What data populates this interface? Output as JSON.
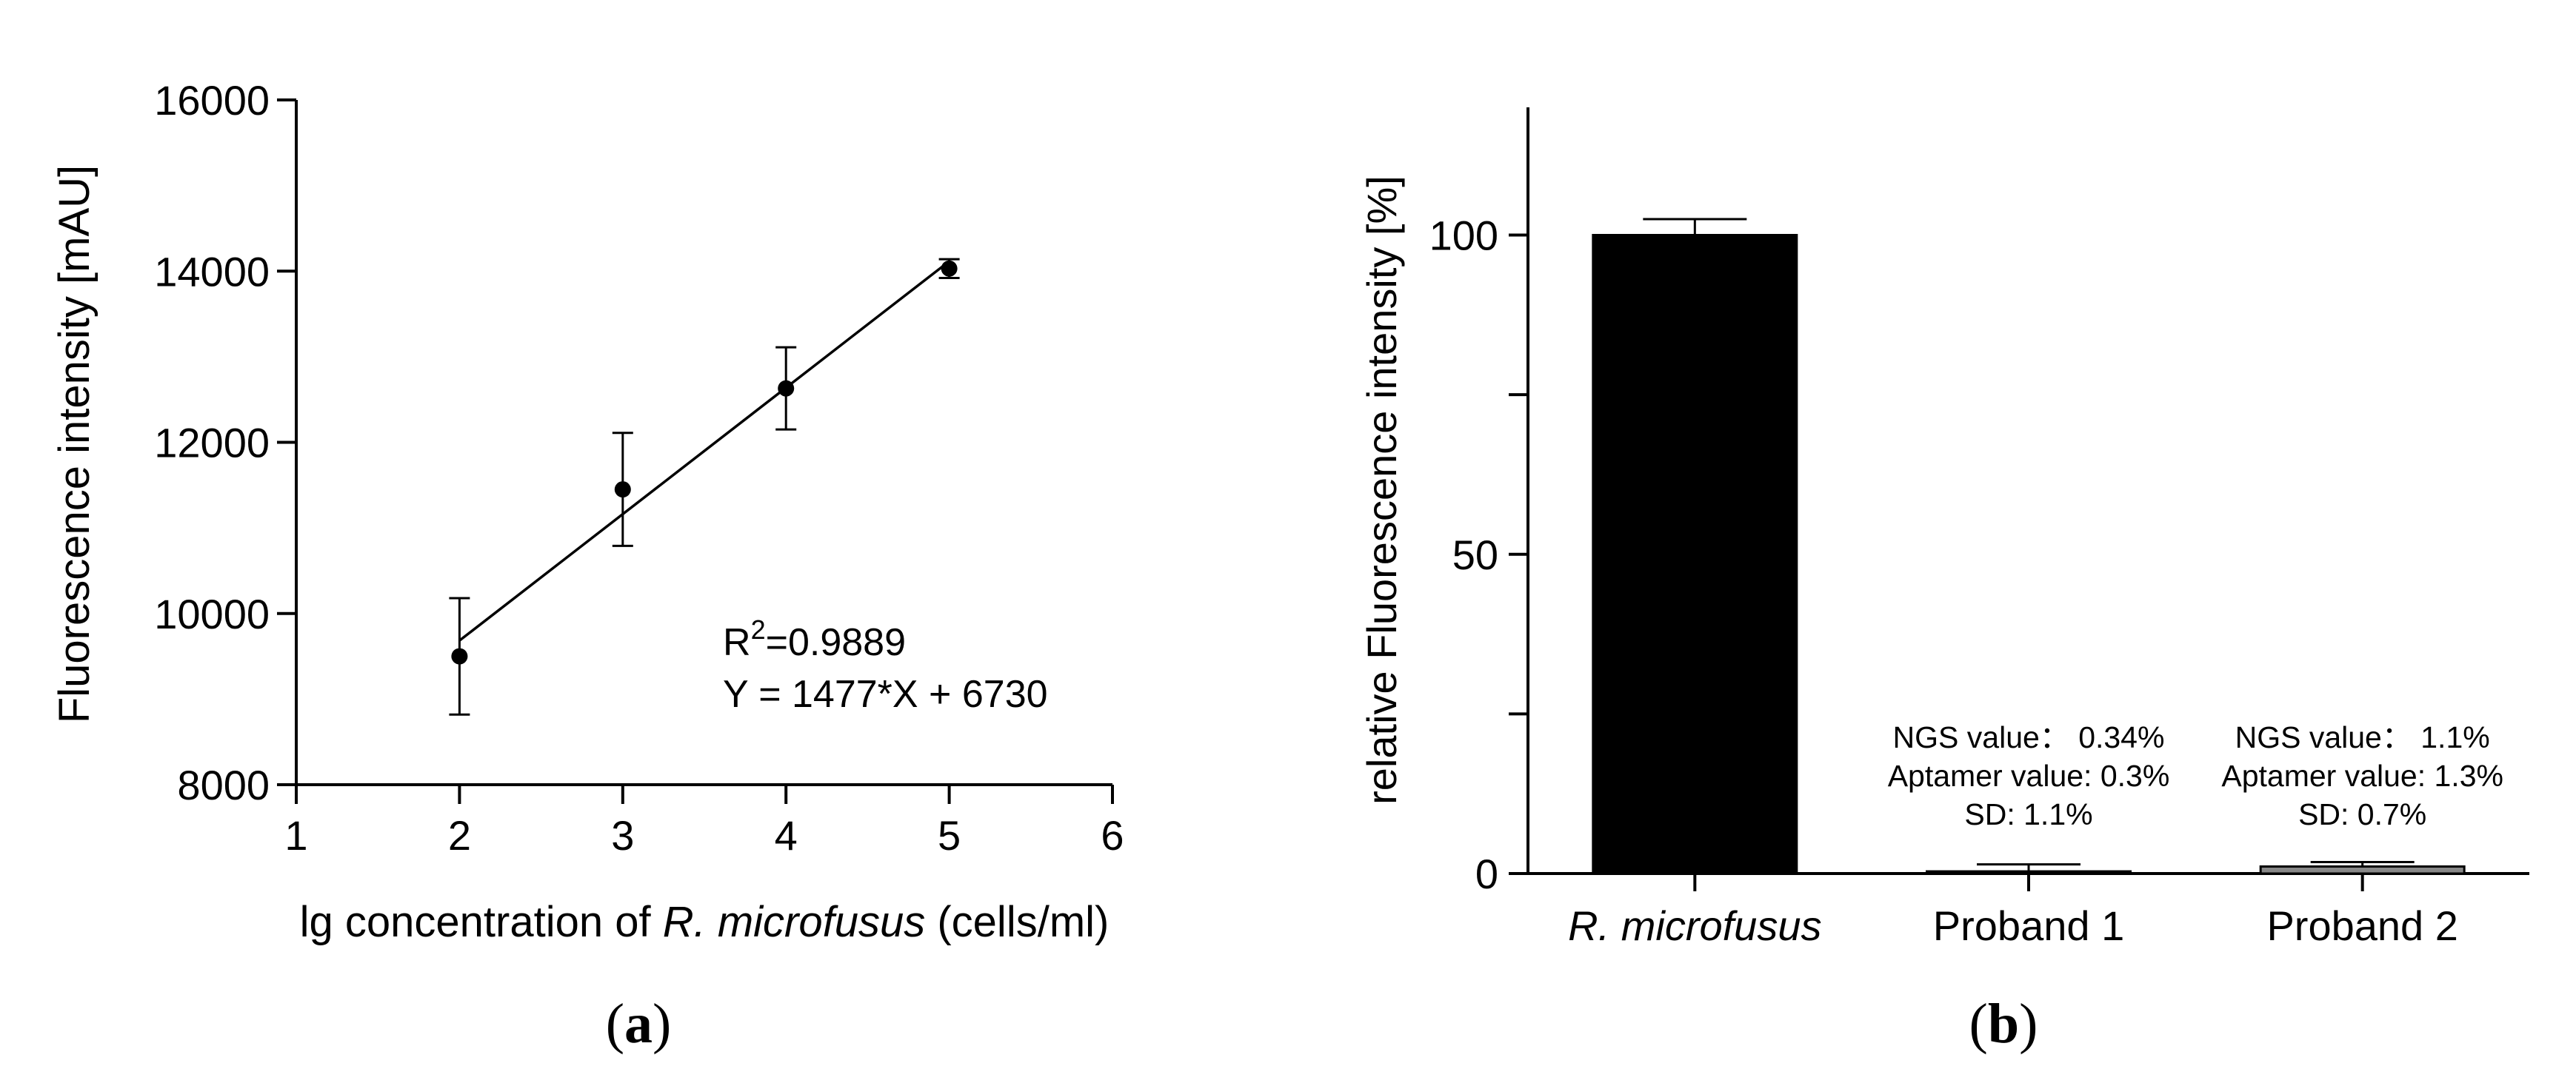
{
  "chart_data": [
    {
      "type": "scatter",
      "panel_label": "a",
      "xlabel_pre": "lg concentration of ",
      "xlabel_species": "R. microfusus",
      "xlabel_post": " (cells/ml)",
      "ylabel": "Fluorescence intensity [mAU]",
      "xlim": [
        1,
        6
      ],
      "ylim": [
        8000,
        16000
      ],
      "x_ticks": [
        "1",
        "2",
        "3",
        "4",
        "5",
        "6"
      ],
      "y_ticks": [
        "8000",
        "10000",
        "12000",
        "14000",
        "16000"
      ],
      "points": [
        {
          "x": 2,
          "y": 9500,
          "err": 680
        },
        {
          "x": 3,
          "y": 11450,
          "err": 660
        },
        {
          "x": 4,
          "y": 12630,
          "err": 480
        },
        {
          "x": 5,
          "y": 14030,
          "err": 110
        }
      ],
      "fit": {
        "slope": 1477,
        "intercept": 6730,
        "x_range": [
          2,
          5
        ]
      },
      "annotation": {
        "r_prefix": "R",
        "r_sup": "2",
        "r_value": "=0.9889",
        "equation": "Y = 1477*X + 6730"
      }
    },
    {
      "type": "bar",
      "panel_label": "b",
      "ylabel": "relative Fluorescence intensity [%]",
      "ylim": [
        0,
        120
      ],
      "y_ticks": [
        "0",
        "50",
        "100"
      ],
      "categories": [
        "R. microfusus",
        "Proband 1",
        "Proband 2"
      ],
      "values": [
        100,
        0.34,
        1.1
      ],
      "errors": [
        2.5,
        1.1,
        0.7
      ],
      "bar_colors": [
        "#000000",
        "#ffffff",
        "#888888"
      ],
      "annotations": [
        null,
        [
          "NGS value： 0.34%",
          "Aptamer value: 0.3%",
          "SD: 1.1%"
        ],
        [
          "NGS value： 1.1%",
          "Aptamer value: 1.3%",
          "SD: 0.7%"
        ]
      ]
    }
  ]
}
